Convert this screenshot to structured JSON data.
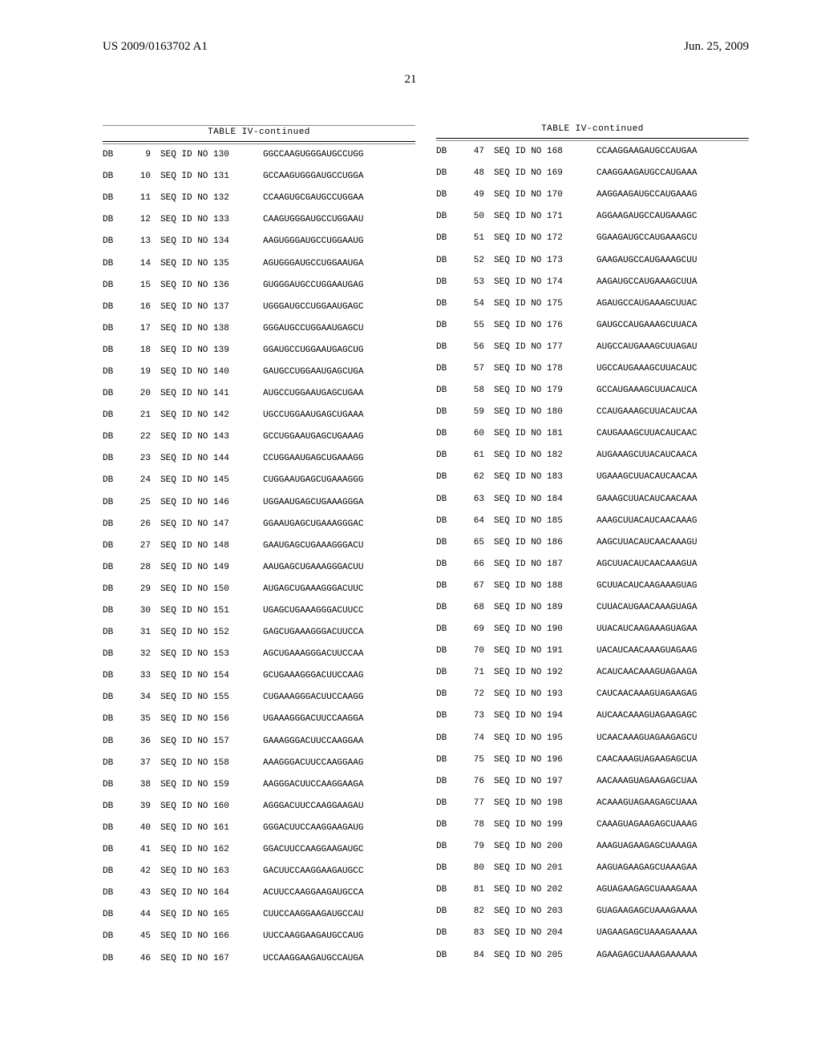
{
  "header": {
    "pub_number": "US 2009/0163702 A1",
    "pub_date": "Jun. 25, 2009"
  },
  "page_number": "21",
  "table_title": "TABLE IV-continued",
  "left": [
    {
      "c1": "DB",
      "c2": "9",
      "c3": "SEQ ID NO 130",
      "c4": "GGCCAAGUGGGAUGCCUGG"
    },
    {
      "c1": "DB",
      "c2": "10",
      "c3": "SEQ ID NO 131",
      "c4": "GCCAAGUGGGAUGCCUGGA"
    },
    {
      "c1": "DB",
      "c2": "11",
      "c3": "SEQ ID NO 132",
      "c4": "CCAAGUGCGAUGCCUGGAA"
    },
    {
      "c1": "DB",
      "c2": "12",
      "c3": "SEQ ID NO 133",
      "c4": "CAAGUGGGAUGCCUGGAAU"
    },
    {
      "c1": "DB",
      "c2": "13",
      "c3": "SEQ ID NO 134",
      "c4": "AAGUGGGAUGCCUGGAAUG"
    },
    {
      "c1": "DB",
      "c2": "14",
      "c3": "SEQ ID NO 135",
      "c4": "AGUGGGAUGCCUGGAAUGA"
    },
    {
      "c1": "DB",
      "c2": "15",
      "c3": "SEQ ID NO 136",
      "c4": "GUGGGAUGCCUGGAAUGAG"
    },
    {
      "c1": "DB",
      "c2": "16",
      "c3": "SEQ ID NO 137",
      "c4": "UGGGAUGCCUGGAAUGAGC"
    },
    {
      "c1": "DB",
      "c2": "17",
      "c3": "SEQ ID NO 138",
      "c4": "GGGAUGCCUGGAAUGAGCU"
    },
    {
      "c1": "DB",
      "c2": "18",
      "c3": "SEQ ID NO 139",
      "c4": "GGAUGCCUGGAAUGAGCUG"
    },
    {
      "c1": "DB",
      "c2": "19",
      "c3": "SEQ ID NO 140",
      "c4": "GAUGCCUGGAAUGAGCUGA"
    },
    {
      "c1": "DB",
      "c2": "20",
      "c3": "SEQ ID NO 141",
      "c4": "AUGCCUGGAAUGAGCUGAA"
    },
    {
      "c1": "DB",
      "c2": "21",
      "c3": "SEQ ID NO 142",
      "c4": "UGCCUGGAAUGAGCUGAAA"
    },
    {
      "c1": "DB",
      "c2": "22",
      "c3": "SEQ ID NO 143",
      "c4": "GCCUGGAAUGAGCUGAAAG"
    },
    {
      "c1": "DB",
      "c2": "23",
      "c3": "SEQ ID NO 144",
      "c4": "CCUGGAAUGAGCUGAAAGG"
    },
    {
      "c1": "DB",
      "c2": "24",
      "c3": "SEQ ID NO 145",
      "c4": "CUGGAAUGAGCUGAAAGGG"
    },
    {
      "c1": "DB",
      "c2": "25",
      "c3": "SEQ ID NO 146",
      "c4": "UGGAAUGAGCUGAAAGGGA"
    },
    {
      "c1": "DB",
      "c2": "26",
      "c3": "SEQ ID NO 147",
      "c4": "GGAAUGAGCUGAAAGGGAC"
    },
    {
      "c1": "DB",
      "c2": "27",
      "c3": "SEQ ID NO 148",
      "c4": "GAAUGAGCUGAAAGGGACU"
    },
    {
      "c1": "DB",
      "c2": "28",
      "c3": "SEQ ID NO 149",
      "c4": "AAUGAGCUGAAAGGGACUU"
    },
    {
      "c1": "DB",
      "c2": "29",
      "c3": "SEQ ID NO 150",
      "c4": "AUGAGCUGAAAGGGACUUC"
    },
    {
      "c1": "DB",
      "c2": "30",
      "c3": "SEQ ID NO 151",
      "c4": "UGAGCUGAAAGGGACUUCC"
    },
    {
      "c1": "DB",
      "c2": "31",
      "c3": "SEQ ID NO 152",
      "c4": "GAGCUGAAAGGGACUUCCA"
    },
    {
      "c1": "DB",
      "c2": "32",
      "c3": "SEQ ID NO 153",
      "c4": "AGCUGAAAGGGACUUCCAA"
    },
    {
      "c1": "DB",
      "c2": "33",
      "c3": "SEQ ID NO 154",
      "c4": "GCUGAAAGGGACUUCCAAG"
    },
    {
      "c1": "DB",
      "c2": "34",
      "c3": "SEQ ID NO 155",
      "c4": "CUGAAAGGGACUUCCAAGG"
    },
    {
      "c1": "DB",
      "c2": "35",
      "c3": "SEQ ID NO 156",
      "c4": "UGAAAGGGACUUCCAAGGA"
    },
    {
      "c1": "DB",
      "c2": "36",
      "c3": "SEQ ID NO 157",
      "c4": "GAAAGGGACUUCCAAGGAA"
    },
    {
      "c1": "DB",
      "c2": "37",
      "c3": "SEQ ID NO 158",
      "c4": "AAAGGGACUUCCAAGGAAG"
    },
    {
      "c1": "DB",
      "c2": "38",
      "c3": "SEQ ID NO 159",
      "c4": "AAGGGACUUCCAAGGAAGA"
    },
    {
      "c1": "DB",
      "c2": "39",
      "c3": "SEQ ID NO 160",
      "c4": "AGGGACUUCCAAGGAAGAU"
    },
    {
      "c1": "DB",
      "c2": "40",
      "c3": "SEQ ID NO 161",
      "c4": "GGGACUUCCAAGGAAGAUG"
    },
    {
      "c1": "DB",
      "c2": "41",
      "c3": "SEQ ID NO 162",
      "c4": "GGACUUCCAAGGAAGAUGC"
    },
    {
      "c1": "DB",
      "c2": "42",
      "c3": "SEQ ID NO 163",
      "c4": "GACUUCCAAGGAAGAUGCC"
    },
    {
      "c1": "DB",
      "c2": "43",
      "c3": "SEQ ID NO 164",
      "c4": "ACUUCCAAGGAAGAUGCCA"
    },
    {
      "c1": "DB",
      "c2": "44",
      "c3": "SEQ ID NO 165",
      "c4": "CUUCCAAGGAAGAUGCCAU"
    },
    {
      "c1": "DB",
      "c2": "45",
      "c3": "SEQ ID NO 166",
      "c4": "UUCCAAGGAAGAUGCCAUG"
    },
    {
      "c1": "DB",
      "c2": "46",
      "c3": "SEQ ID NO 167",
      "c4": "UCCAAGGAAGAUGCCAUGA"
    }
  ],
  "right": [
    {
      "c1": "DB",
      "c2": "47",
      "c3": "SEQ ID NO 168",
      "c4": "CCAAGGAAGAUGCCAUGAA"
    },
    {
      "c1": "DB",
      "c2": "48",
      "c3": "SEQ ID NO 169",
      "c4": "CAAGGAAGAUGCCAUGAAA"
    },
    {
      "c1": "DB",
      "c2": "49",
      "c3": "SEQ ID NO 170",
      "c4": "AAGGAAGAUGCCAUGAAAG"
    },
    {
      "c1": "DB",
      "c2": "50",
      "c3": "SEQ ID NO 171",
      "c4": "AGGAAGAUGCCAUGAAAGC"
    },
    {
      "c1": "DB",
      "c2": "51",
      "c3": "SEQ ID NO 172",
      "c4": "GGAAGAUGCCAUGAAAGCU"
    },
    {
      "c1": "DB",
      "c2": "52",
      "c3": "SEQ ID NO 173",
      "c4": "GAAGAUGCCAUGAAAGCUU"
    },
    {
      "c1": "DB",
      "c2": "53",
      "c3": "SEQ ID NO 174",
      "c4": "AAGAUGCCAUGAAAGCUUA"
    },
    {
      "c1": "DB",
      "c2": "54",
      "c3": "SEQ ID NO 175",
      "c4": "AGAUGCCAUGAAAGCUUAC"
    },
    {
      "c1": "DB",
      "c2": "55",
      "c3": "SEQ ID NO 176",
      "c4": "GAUGCCAUGAAAGCUUACA"
    },
    {
      "c1": "DB",
      "c2": "56",
      "c3": "SEQ ID NO 177",
      "c4": "AUGCCAUGAAAGCUUAGAU"
    },
    {
      "c1": "DB",
      "c2": "57",
      "c3": "SEQ ID NO 178",
      "c4": "UGCCAUGAAAGCUUACAUC"
    },
    {
      "c1": "DB",
      "c2": "58",
      "c3": "SEQ ID NO 179",
      "c4": "GCCAUGAAAGCUUACAUCA"
    },
    {
      "c1": "DB",
      "c2": "59",
      "c3": "SEQ ID NO 180",
      "c4": "CCAUGAAAGCUUACAUCAA"
    },
    {
      "c1": "DB",
      "c2": "60",
      "c3": "SEQ ID NO 181",
      "c4": "CAUGAAAGCUUACAUCAAC"
    },
    {
      "c1": "DB",
      "c2": "61",
      "c3": "SEQ ID NO 182",
      "c4": "AUGAAAGCUUACAUCAACA"
    },
    {
      "c1": "DB",
      "c2": "62",
      "c3": "SEQ ID NO 183",
      "c4": "UGAAAGCUUACAUCAACAA"
    },
    {
      "c1": "DB",
      "c2": "63",
      "c3": "SEQ ID NO 184",
      "c4": "GAAAGCUUACAUCAACAAA"
    },
    {
      "c1": "DB",
      "c2": "64",
      "c3": "SEQ ID NO 185",
      "c4": "AAAGCUUACAUCAACAAAG"
    },
    {
      "c1": "DB",
      "c2": "65",
      "c3": "SEQ ID NO 186",
      "c4": "AAGCUUACAUCAACAAAGU"
    },
    {
      "c1": "DB",
      "c2": "66",
      "c3": "SEQ ID NO 187",
      "c4": "AGCUUACAUCAACAAAGUA"
    },
    {
      "c1": "DB",
      "c2": "67",
      "c3": "SEQ ID NO 188",
      "c4": "GCUUACAUCAAGAAAGUAG"
    },
    {
      "c1": "DB",
      "c2": "68",
      "c3": "SEQ ID NO 189",
      "c4": "CUUACAUGAACAAAGUAGA"
    },
    {
      "c1": "DB",
      "c2": "69",
      "c3": "SEQ ID NO 190",
      "c4": "UUACAUCAAGAAAGUAGAA"
    },
    {
      "c1": "DB",
      "c2": "70",
      "c3": "SEQ ID NO 191",
      "c4": "UACAUCAACAAAGUAGAAG"
    },
    {
      "c1": "DB",
      "c2": "71",
      "c3": "SEQ ID NO 192",
      "c4": "ACAUCAACAAAGUAGAAGA"
    },
    {
      "c1": "DB",
      "c2": "72",
      "c3": "SEQ ID NO 193",
      "c4": "CAUCAACAAAGUAGAAGAG"
    },
    {
      "c1": "DB",
      "c2": "73",
      "c3": "SEQ ID NO 194",
      "c4": "AUCAACAAAGUAGAAGAGC"
    },
    {
      "c1": "DB",
      "c2": "74",
      "c3": "SEQ ID NO 195",
      "c4": "UCAACAAAGUAGAAGAGCU"
    },
    {
      "c1": "DB",
      "c2": "75",
      "c3": "SEQ ID NO 196",
      "c4": "CAACAAAGUAGAAGAGCUA"
    },
    {
      "c1": "DB",
      "c2": "76",
      "c3": "SEQ ID NO 197",
      "c4": "AACAAAGUAGAAGAGCUAA"
    },
    {
      "c1": "DB",
      "c2": "77",
      "c3": "SEQ ID NO 198",
      "c4": "ACAAAGUAGAAGAGCUAAA"
    },
    {
      "c1": "DB",
      "c2": "78",
      "c3": "SEQ ID NO 199",
      "c4": "CAAAGUAGAAGAGCUAAAG"
    },
    {
      "c1": "DB",
      "c2": "79",
      "c3": "SEQ ID NO 200",
      "c4": "AAAGUAGAAGAGCUAAAGA"
    },
    {
      "c1": "DB",
      "c2": "80",
      "c3": "SEQ ID NO 201",
      "c4": "AAGUAGAAGAGCUAAAGAA"
    },
    {
      "c1": "DB",
      "c2": "81",
      "c3": "SEQ ID NO 202",
      "c4": "AGUAGAAGAGCUAAAGAAA"
    },
    {
      "c1": "DB",
      "c2": "82",
      "c3": "SEQ ID NO 203",
      "c4": "GUAGAAGAGCUAAAGAAAA"
    },
    {
      "c1": "DB",
      "c2": "83",
      "c3": "SEQ ID NO 204",
      "c4": "UAGAAGAGCUAAAGAAAAA"
    },
    {
      "c1": "DB",
      "c2": "84",
      "c3": "SEQ ID NO 205",
      "c4": "AGAAGAGCUAAAGAAAAAA"
    }
  ]
}
